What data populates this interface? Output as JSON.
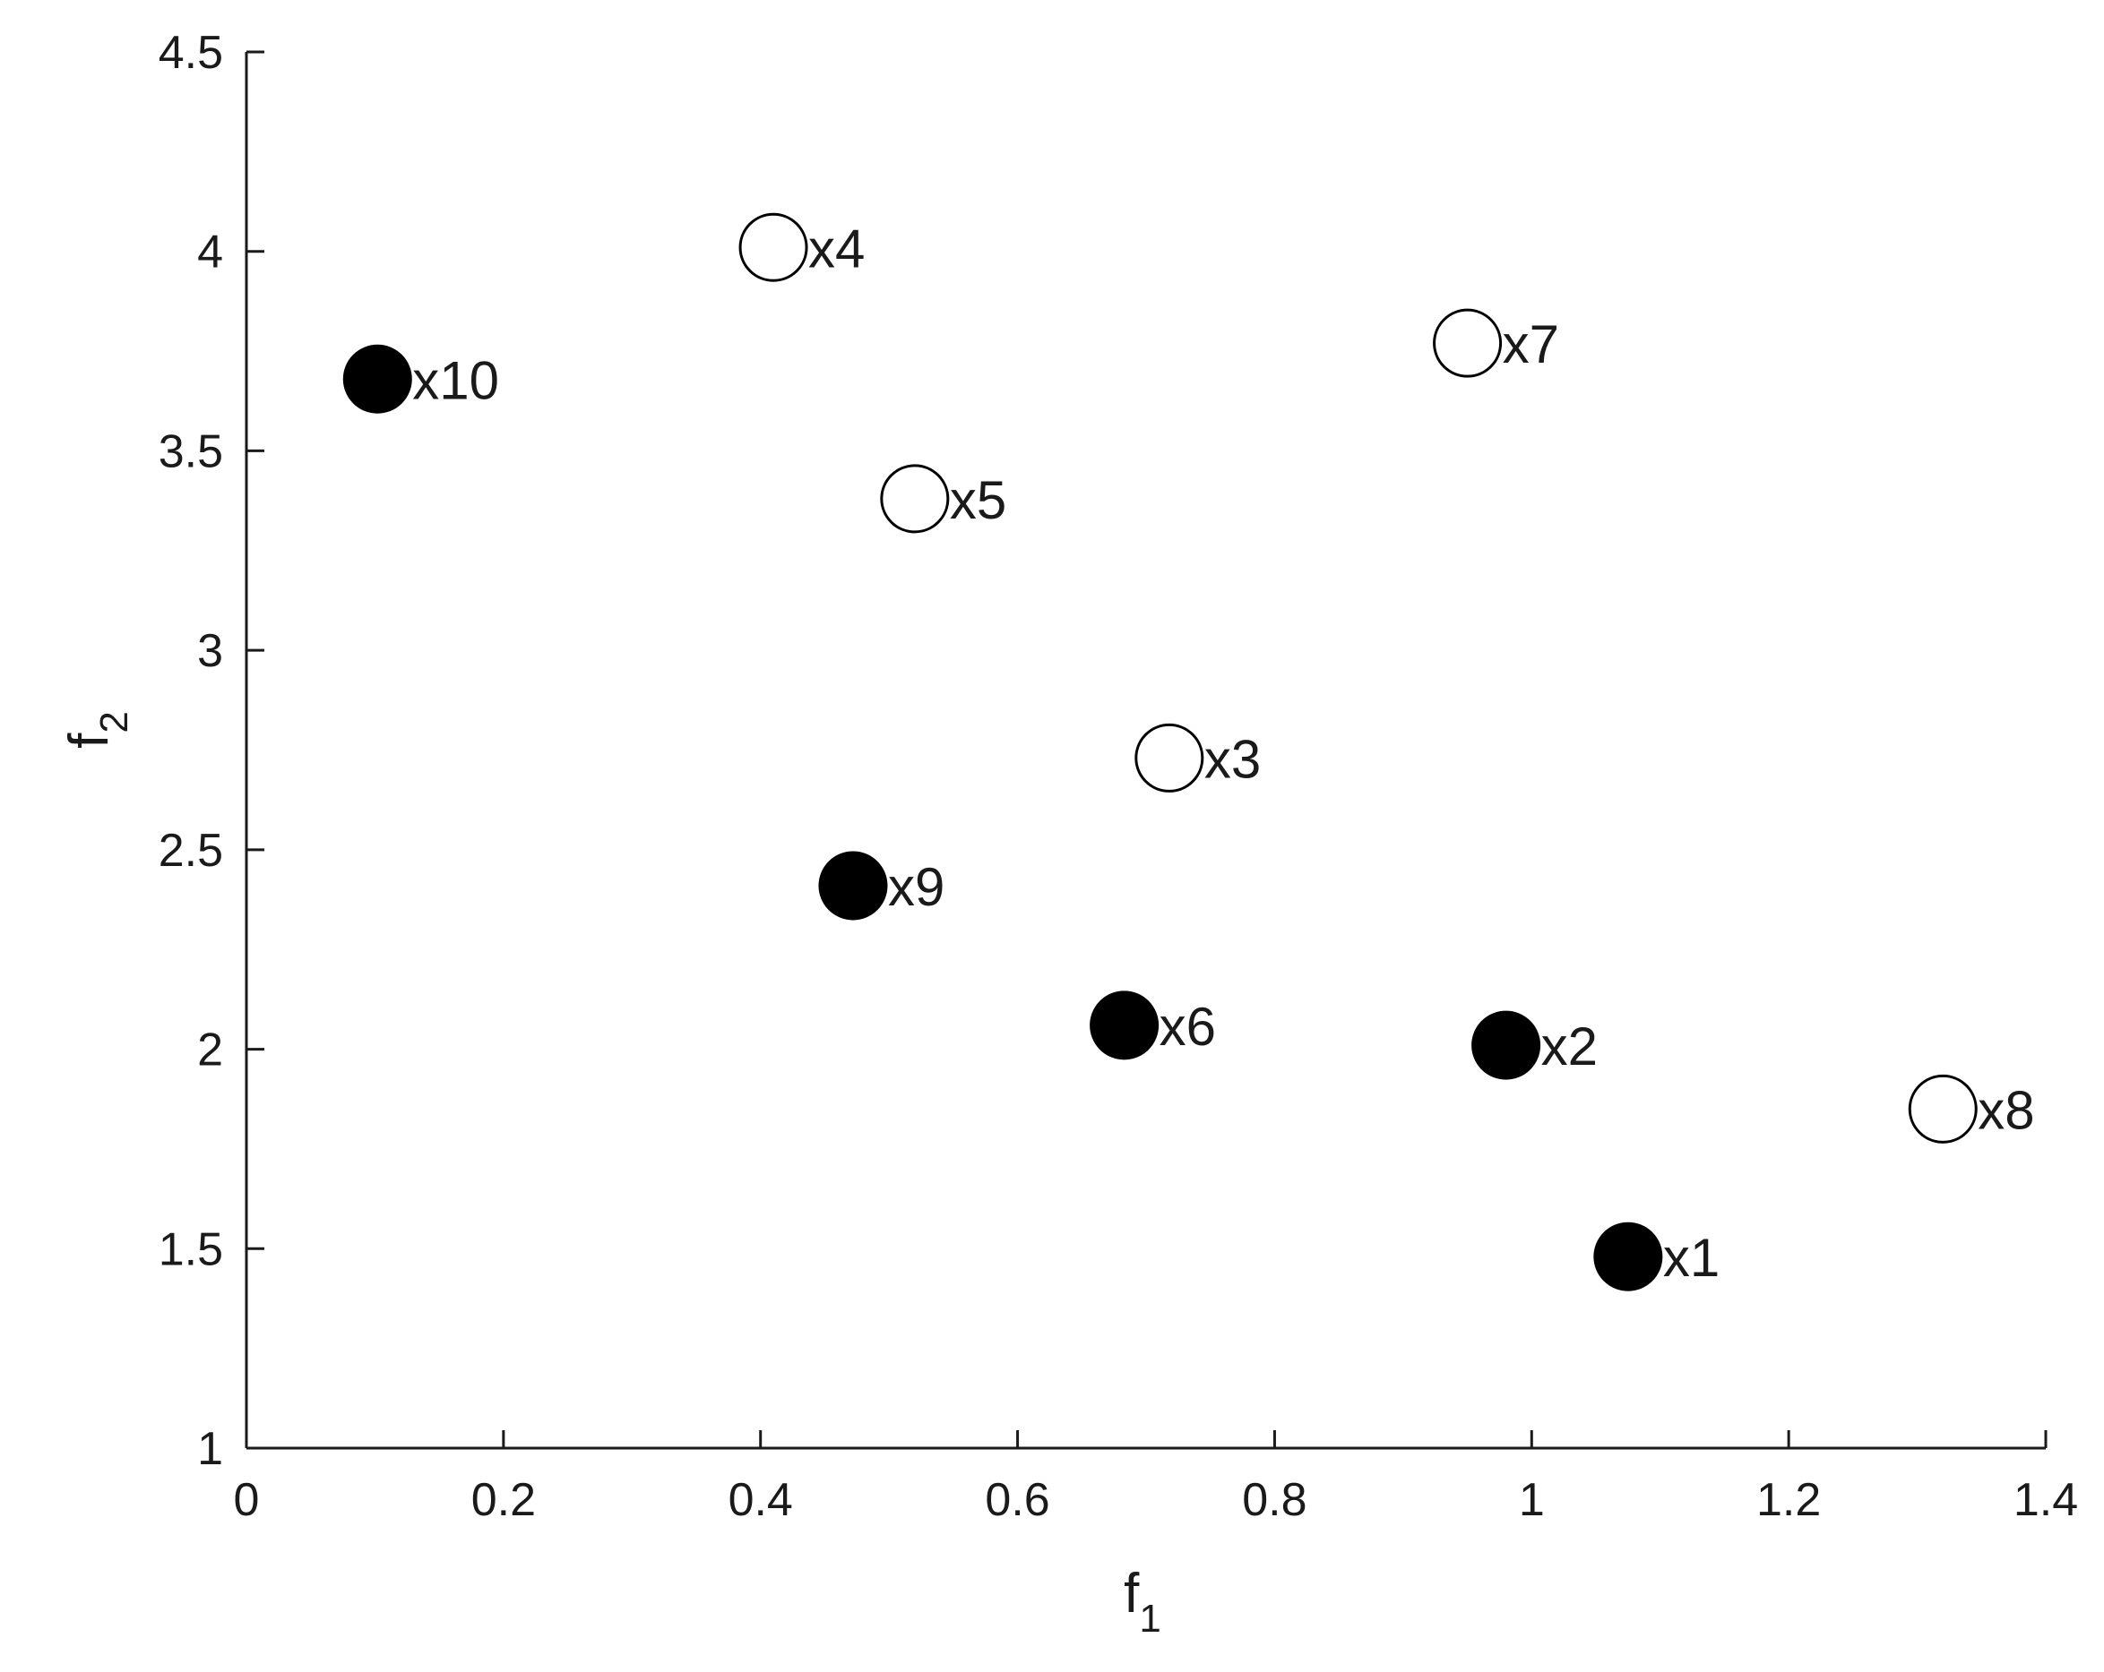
{
  "chart_data": {
    "type": "scatter",
    "title": "",
    "xlabel": {
      "base": "f",
      "sub": "1"
    },
    "ylabel": {
      "base": "f",
      "sub": "2"
    },
    "xlim": [
      0,
      1.4
    ],
    "ylim": [
      1,
      4.5
    ],
    "x_ticks": [
      0,
      0.2,
      0.4,
      0.6,
      0.8,
      1,
      1.2,
      1.4
    ],
    "x_tick_labels": [
      "0",
      "0.2",
      "0.4",
      "0.6",
      "0.8",
      "1",
      "1.2",
      "1.4"
    ],
    "y_ticks": [
      1,
      1.5,
      2,
      2.5,
      3,
      3.5,
      4,
      4.5
    ],
    "y_tick_labels": [
      "1",
      "1.5",
      "2",
      "2.5",
      "3",
      "3.5",
      "4",
      "4.5"
    ],
    "grid": false,
    "points": [
      {
        "label": "x1",
        "x": 1.075,
        "y": 1.48,
        "filled": true
      },
      {
        "label": "x2",
        "x": 0.98,
        "y": 2.01,
        "filled": true
      },
      {
        "label": "x3",
        "x": 0.718,
        "y": 2.73,
        "filled": false
      },
      {
        "label": "x4",
        "x": 0.41,
        "y": 4.01,
        "filled": false
      },
      {
        "label": "x5",
        "x": 0.52,
        "y": 3.38,
        "filled": false
      },
      {
        "label": "x6",
        "x": 0.683,
        "y": 2.06,
        "filled": true
      },
      {
        "label": "x7",
        "x": 0.95,
        "y": 3.77,
        "filled": false
      },
      {
        "label": "x8",
        "x": 1.32,
        "y": 1.85,
        "filled": false
      },
      {
        "label": "x9",
        "x": 0.472,
        "y": 2.41,
        "filled": true
      },
      {
        "label": "x10",
        "x": 0.102,
        "y": 3.68,
        "filled": true
      }
    ],
    "colors": {
      "marker": "#000000",
      "open_fill": "#ffffff",
      "text": "#1a1a1a"
    }
  }
}
